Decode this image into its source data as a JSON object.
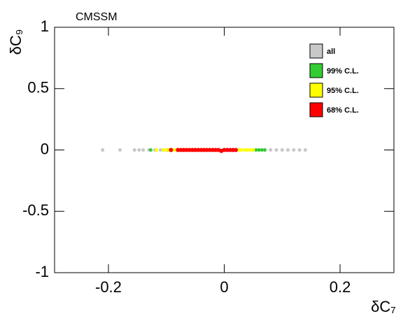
{
  "chart_data": {
    "type": "scatter",
    "title": "CMSSM",
    "x_label": "δC₇",
    "y_label": "δC₉",
    "xlim": [
      -0.293,
      0.293
    ],
    "ylim": [
      -1,
      1
    ],
    "xticks": [
      -0.2,
      0,
      0.2
    ],
    "yticks": [
      -1,
      -0.5,
      0,
      0.5,
      1
    ],
    "legend": "top-right",
    "series": [
      {
        "name": "all",
        "color": "#c8c8c8",
        "x": [
          -0.21,
          -0.18,
          -0.155,
          -0.147,
          -0.14,
          -0.13,
          -0.12,
          -0.11,
          -0.1,
          -0.09,
          0.05,
          0.06,
          0.07,
          0.08,
          0.09,
          0.1,
          0.11,
          0.12,
          0.13,
          0.14
        ],
        "y": [
          0,
          0,
          0,
          0,
          0,
          0,
          0,
          0,
          0,
          0,
          0,
          0,
          0,
          0,
          0,
          0,
          0,
          0,
          0,
          0
        ]
      },
      {
        "name": "99% C.L.",
        "color": "#33cc33",
        "x": [
          -0.127,
          -0.097,
          0.055,
          0.06,
          0.065,
          0.07
        ],
        "y": [
          0,
          0,
          0,
          0,
          0,
          0
        ]
      },
      {
        "name": "95% C.L.",
        "color": "#ffff00",
        "x": [
          -0.117,
          -0.105,
          -0.1,
          -0.095,
          -0.09,
          -0.085,
          0.02,
          0.025,
          0.03,
          0.035,
          0.04,
          0.045,
          0.05
        ],
        "y": [
          0,
          0,
          0,
          0,
          0,
          0,
          0,
          0,
          0,
          0,
          0,
          0,
          0
        ]
      },
      {
        "name": "68% C.L.",
        "color": "#ff0000",
        "x": [
          -0.092,
          -0.08,
          -0.075,
          -0.07,
          -0.065,
          -0.06,
          -0.055,
          -0.05,
          -0.045,
          -0.04,
          -0.035,
          -0.03,
          -0.025,
          -0.02,
          -0.015,
          -0.01,
          -0.005,
          0,
          0.005,
          0.01,
          0.015,
          0.02
        ],
        "y": [
          0,
          0,
          0,
          0,
          0,
          0,
          0,
          0,
          0,
          0,
          0,
          0,
          0,
          0,
          0,
          0,
          -0.008,
          0,
          0,
          0,
          0,
          0
        ]
      }
    ]
  }
}
